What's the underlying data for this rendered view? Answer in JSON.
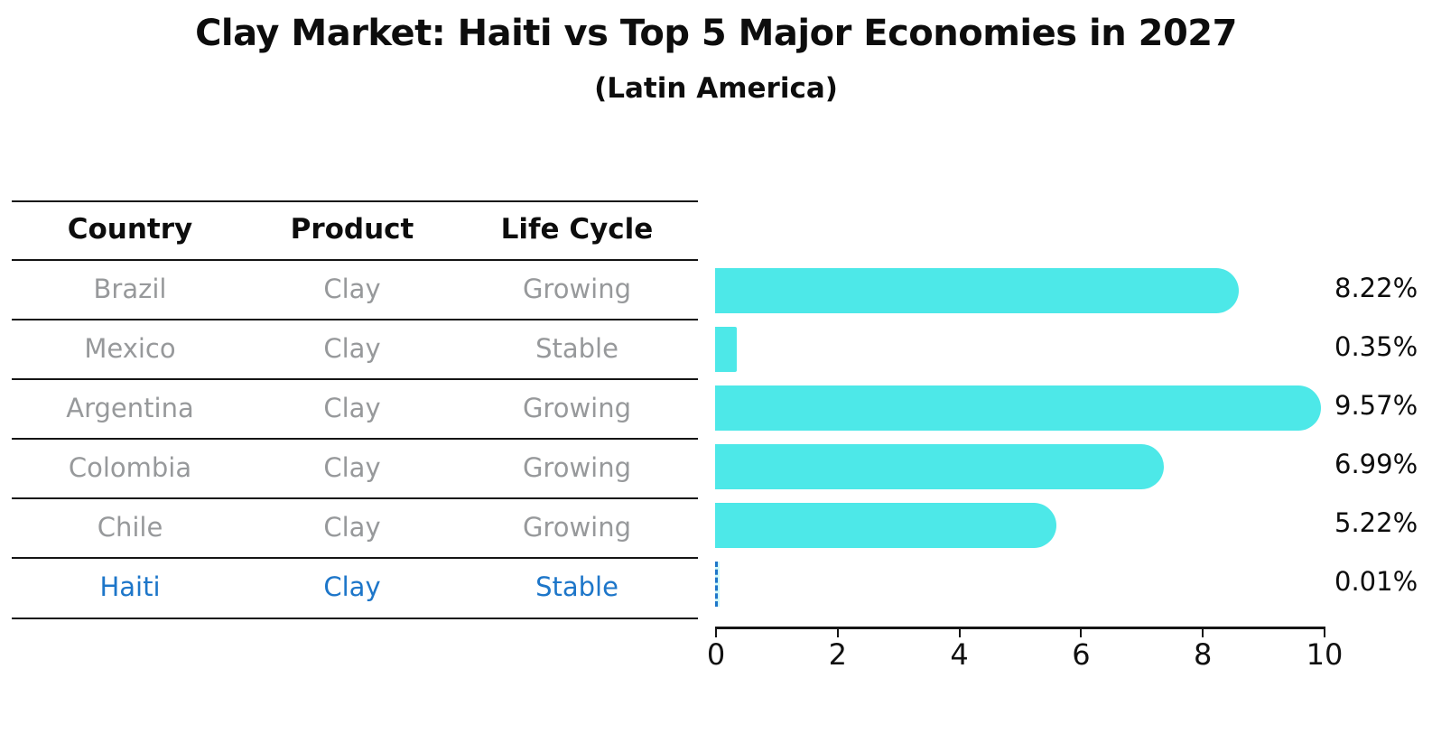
{
  "title": "Clay Market: Haiti vs Top 5 Major Economies in 2027",
  "subtitle": "(Latin America)",
  "colors": {
    "bar": "#4de8e8",
    "highlight_blue": "#1d76c9",
    "row_text_gray": "#97999b",
    "text_black": "#0d0d0d"
  },
  "table": {
    "headers": [
      "Country",
      "Product",
      "Life Cycle"
    ],
    "rows": [
      {
        "country": "Brazil",
        "product": "Clay",
        "life_cycle": "Growing",
        "highlight": false
      },
      {
        "country": "Mexico",
        "product": "Clay",
        "life_cycle": "Stable",
        "highlight": false
      },
      {
        "country": "Argentina",
        "product": "Clay",
        "life_cycle": "Growing",
        "highlight": false
      },
      {
        "country": "Colombia",
        "product": "Clay",
        "life_cycle": "Growing",
        "highlight": false
      },
      {
        "country": "Chile",
        "product": "Clay",
        "life_cycle": "Growing",
        "highlight": true,
        "highlight_is": false
      },
      {
        "country": "Haiti",
        "product": "Clay",
        "life_cycle": "Stable",
        "highlight": true
      }
    ]
  },
  "chart_data": {
    "type": "bar",
    "orientation": "horizontal",
    "title": "Clay Market: Haiti vs Top 5 Major Economies in 2027",
    "subtitle": "(Latin America)",
    "categories": [
      "Brazil",
      "Mexico",
      "Argentina",
      "Colombia",
      "Chile",
      "Haiti"
    ],
    "values": [
      8.22,
      0.35,
      9.57,
      6.99,
      5.22,
      0.01
    ],
    "value_labels": [
      "8.22%",
      "0.35%",
      "9.57%",
      "6.99%",
      "5.22%",
      "0.01%"
    ],
    "xlabel": "",
    "ylabel": "",
    "xlim": [
      0,
      10
    ],
    "xticks": [
      "0",
      "2",
      "4",
      "6",
      "8",
      "10"
    ],
    "grid": false,
    "legend": "none",
    "bar_color": "#4de8e8",
    "highlight_category": "Haiti",
    "highlight_bar_style": "dashed blue outline"
  }
}
